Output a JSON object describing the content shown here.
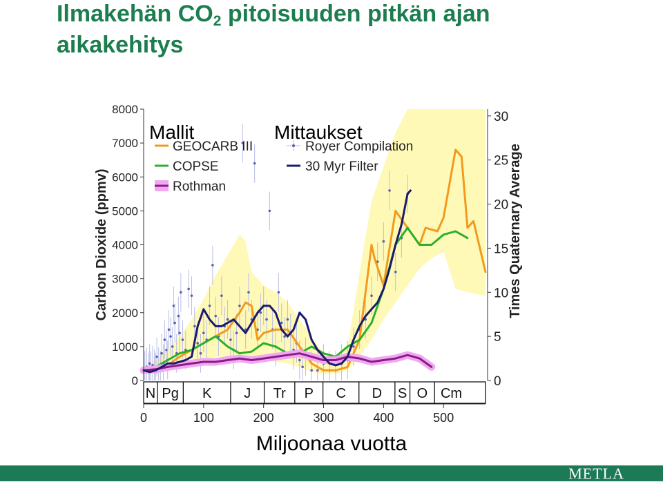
{
  "header": {
    "title_part1": "Ilmakehän CO",
    "title_sub": "2",
    "title_part2": " pitoisuuden pitkän ajan",
    "title_line2": "aikakehitys"
  },
  "footer": {
    "logo": "METLA"
  },
  "colors": {
    "title": "#1c7d4f",
    "footer": "#1c7a56",
    "uncertainty_band": "#fff9b8",
    "geocarb": "#f29a1d",
    "copse": "#2bb02b",
    "rothman": "#8b1a8b",
    "royer": "#5b5fb0",
    "filter": "#1a1a6e"
  },
  "chart_data": {
    "type": "line",
    "xlabel": "Miljoonaa vuotta",
    "ylabel": "Carbon Dioxide (ppmv)",
    "y2label": "Times Quaternary Average",
    "xlim": [
      0,
      570
    ],
    "ylim": [
      0,
      8000
    ],
    "y2lim": [
      0,
      30.77
    ],
    "xticks": [
      0,
      100,
      200,
      300,
      400,
      500
    ],
    "yticks": [
      0,
      1000,
      2000,
      3000,
      4000,
      5000,
      6000,
      7000,
      8000
    ],
    "y2ticks": [
      0,
      5,
      10,
      15,
      20,
      25,
      30
    ],
    "grid": false,
    "legend_groups": [
      {
        "label": "Mallit",
        "position": "top-left",
        "entries": [
          "GEOCARB III",
          "COPSE",
          "Rothman"
        ]
      },
      {
        "label": "Mittaukset",
        "position": "top-center",
        "entries": [
          "Royer Compilation",
          "30 Myr Filter"
        ]
      }
    ],
    "periods": [
      {
        "label": "N",
        "start": 0,
        "end": 23
      },
      {
        "label": "Pg",
        "start": 23,
        "end": 66
      },
      {
        "label": "K",
        "start": 66,
        "end": 145
      },
      {
        "label": "J",
        "start": 145,
        "end": 201
      },
      {
        "label": "Tr",
        "start": 201,
        "end": 252
      },
      {
        "label": "P",
        "start": 252,
        "end": 299
      },
      {
        "label": "C",
        "start": 299,
        "end": 359
      },
      {
        "label": "D",
        "start": 359,
        "end": 419
      },
      {
        "label": "S",
        "start": 419,
        "end": 444
      },
      {
        "label": "O",
        "start": 444,
        "end": 485
      },
      {
        "label": "Cm",
        "start": 485,
        "end": 541
      }
    ],
    "uncertainty_band": {
      "name": "GEOCARB III uncertainty",
      "x": [
        0,
        20,
        40,
        60,
        80,
        100,
        120,
        140,
        160,
        170,
        180,
        200,
        220,
        240,
        260,
        280,
        300,
        320,
        340,
        360,
        380,
        400,
        420,
        440,
        460,
        480,
        500,
        520,
        540,
        570
      ],
      "lower": [
        200,
        200,
        300,
        400,
        500,
        600,
        700,
        700,
        700,
        700,
        650,
        600,
        550,
        500,
        400,
        250,
        200,
        200,
        300,
        700,
        1200,
        1800,
        2300,
        2800,
        3300,
        3600,
        3800,
        2700,
        2600,
        2500
      ],
      "upper": [
        400,
        600,
        900,
        1300,
        1800,
        2400,
        3100,
        3700,
        4300,
        4100,
        3200,
        2800,
        2600,
        2300,
        1800,
        1300,
        800,
        600,
        1000,
        3200,
        5300,
        6300,
        7300,
        8000,
        8000,
        8000,
        8000,
        8000,
        8000,
        8000
      ]
    },
    "series": [
      {
        "name": "GEOCARB III",
        "color": "#f29a1d",
        "x": [
          0,
          20,
          40,
          60,
          80,
          100,
          120,
          140,
          160,
          170,
          180,
          190,
          200,
          220,
          240,
          260,
          280,
          300,
          320,
          340,
          360,
          380,
          385,
          400,
          420,
          440,
          460,
          470,
          490,
          500,
          520,
          530,
          540,
          550,
          570
        ],
        "y": [
          300,
          300,
          450,
          700,
          900,
          1100,
          1300,
          1500,
          2000,
          2300,
          2200,
          1200,
          1400,
          1500,
          1500,
          1000,
          500,
          300,
          300,
          400,
          1200,
          4000,
          3600,
          2800,
          5000,
          4500,
          4000,
          4500,
          4400,
          4800,
          6800,
          6600,
          4500,
          4700,
          3200
        ]
      },
      {
        "name": "COPSE",
        "color": "#2bb02b",
        "x": [
          0,
          20,
          40,
          60,
          80,
          100,
          110,
          120,
          140,
          160,
          180,
          200,
          220,
          240,
          260,
          280,
          300,
          320,
          340,
          360,
          380,
          400,
          420,
          440,
          460,
          480,
          500,
          520,
          540
        ],
        "y": [
          300,
          400,
          600,
          800,
          900,
          1100,
          1200,
          1300,
          1000,
          800,
          850,
          1100,
          1000,
          800,
          800,
          1000,
          800,
          700,
          1000,
          1200,
          1700,
          2700,
          4000,
          4500,
          4000,
          4000,
          4300,
          4400,
          4200
        ]
      },
      {
        "name": "Rothman",
        "color": "#8b1a8b",
        "x": [
          0,
          20,
          40,
          60,
          80,
          100,
          120,
          140,
          160,
          180,
          200,
          220,
          240,
          260,
          280,
          300,
          320,
          340,
          360,
          380,
          400,
          420,
          440,
          460,
          480
        ],
        "y": [
          300,
          330,
          400,
          450,
          500,
          550,
          550,
          600,
          650,
          600,
          650,
          700,
          750,
          800,
          700,
          600,
          600,
          700,
          650,
          550,
          600,
          650,
          750,
          650,
          400
        ]
      },
      {
        "name": "30 Myr Filter",
        "color": "#1a1a6e",
        "x": [
          0,
          10,
          20,
          30,
          40,
          50,
          60,
          70,
          80,
          90,
          100,
          110,
          120,
          130,
          140,
          150,
          160,
          170,
          180,
          190,
          200,
          210,
          220,
          230,
          240,
          250,
          260,
          270,
          280,
          290,
          300,
          310,
          320,
          330,
          340,
          350,
          360,
          370,
          380,
          390,
          400,
          410,
          420,
          430,
          440,
          445
        ],
        "y": [
          300,
          250,
          300,
          400,
          500,
          500,
          550,
          600,
          700,
          1600,
          2100,
          1800,
          1600,
          1600,
          1700,
          1800,
          1600,
          1400,
          1700,
          2000,
          2200,
          2200,
          2000,
          1500,
          1300,
          1500,
          2000,
          1800,
          1200,
          900,
          700,
          500,
          450,
          500,
          700,
          1200,
          1600,
          1900,
          2100,
          2300,
          2700,
          3300,
          4000,
          4600,
          5500,
          5600
        ]
      },
      {
        "name": "Royer Compilation",
        "color": "#5b5fb0",
        "type": "scatter",
        "x": [
          2,
          5,
          8,
          10,
          12,
          15,
          18,
          20,
          22,
          25,
          28,
          30,
          33,
          35,
          38,
          40,
          42,
          45,
          48,
          50,
          52,
          55,
          58,
          60,
          62,
          65,
          70,
          75,
          80,
          85,
          90,
          95,
          100,
          105,
          110,
          115,
          120,
          125,
          130,
          135,
          140,
          145,
          150,
          155,
          160,
          165,
          170,
          175,
          180,
          185,
          190,
          195,
          200,
          205,
          210,
          215,
          220,
          225,
          230,
          235,
          240,
          245,
          250,
          255,
          260,
          265,
          270,
          280,
          290,
          300,
          310,
          320,
          330,
          340,
          350,
          360,
          370,
          380,
          390,
          400,
          410,
          420,
          430,
          440
        ],
        "y": [
          300,
          400,
          250,
          500,
          300,
          450,
          350,
          250,
          700,
          400,
          300,
          800,
          500,
          1200,
          900,
          600,
          1500,
          1300,
          1000,
          2200,
          1700,
          800,
          1900,
          1400,
          2600,
          1200,
          900,
          2700,
          2500,
          1600,
          1100,
          800,
          1400,
          1200,
          2200,
          3400,
          1900,
          1300,
          2500,
          1600,
          1800,
          1200,
          900,
          1400,
          2200,
          7000,
          1500,
          2600,
          1800,
          6400,
          1500,
          2000,
          2200,
          1800,
          5000,
          1500,
          1000,
          2600,
          1700,
          1300,
          1800,
          1400,
          900,
          1100,
          600,
          400,
          700,
          300,
          300,
          500,
          300,
          300,
          500,
          600,
          1000,
          1500,
          1800,
          2500,
          3500,
          4100,
          5600,
          3200,
          4200,
          5500
        ]
      }
    ]
  }
}
